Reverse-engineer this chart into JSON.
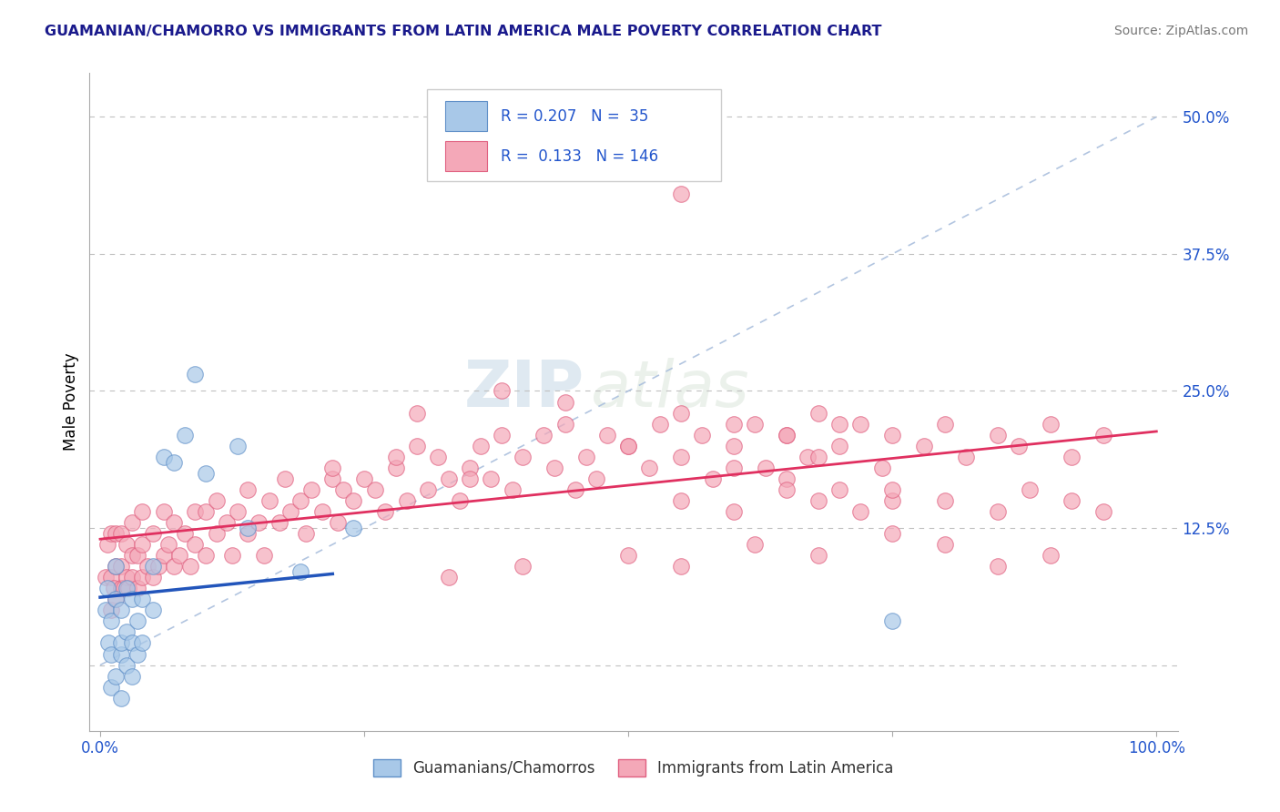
{
  "title": "GUAMANIAN/CHAMORRO VS IMMIGRANTS FROM LATIN AMERICA MALE POVERTY CORRELATION CHART",
  "source": "Source: ZipAtlas.com",
  "ylabel": "Male Poverty",
  "right_yticklabels": [
    "",
    "12.5%",
    "25.0%",
    "37.5%",
    "50.0%"
  ],
  "right_ytick_vals": [
    0.0,
    0.125,
    0.25,
    0.375,
    0.5
  ],
  "color_blue_fill": "#a8c8e8",
  "color_pink_fill": "#f4a8b8",
  "color_blue_edge": "#6090c8",
  "color_pink_edge": "#e06080",
  "color_blue_line": "#2255bb",
  "color_pink_line": "#e03060",
  "color_diag": "#aabfdd",
  "legend_color": "#2255cc",
  "watermark_color": "#c8d8ea",
  "blue_x": [
    0.005,
    0.007,
    0.008,
    0.01,
    0.01,
    0.01,
    0.015,
    0.015,
    0.015,
    0.02,
    0.02,
    0.02,
    0.02,
    0.025,
    0.025,
    0.025,
    0.03,
    0.03,
    0.03,
    0.035,
    0.035,
    0.04,
    0.04,
    0.05,
    0.05,
    0.06,
    0.07,
    0.08,
    0.09,
    0.1,
    0.13,
    0.14,
    0.19,
    0.24,
    0.75
  ],
  "blue_y": [
    0.05,
    0.07,
    0.02,
    -0.02,
    0.01,
    0.04,
    -0.01,
    0.06,
    0.09,
    -0.03,
    0.01,
    0.02,
    0.05,
    0.0,
    0.03,
    0.07,
    -0.01,
    0.02,
    0.06,
    0.01,
    0.04,
    0.02,
    0.06,
    0.05,
    0.09,
    0.19,
    0.185,
    0.21,
    0.265,
    0.175,
    0.2,
    0.125,
    0.085,
    0.125,
    0.04
  ],
  "pink_x": [
    0.005,
    0.007,
    0.01,
    0.01,
    0.01,
    0.013,
    0.015,
    0.015,
    0.015,
    0.02,
    0.02,
    0.02,
    0.022,
    0.025,
    0.025,
    0.027,
    0.03,
    0.03,
    0.03,
    0.035,
    0.035,
    0.04,
    0.04,
    0.04,
    0.045,
    0.05,
    0.05,
    0.055,
    0.06,
    0.06,
    0.065,
    0.07,
    0.07,
    0.075,
    0.08,
    0.085,
    0.09,
    0.09,
    0.1,
    0.1,
    0.11,
    0.11,
    0.12,
    0.125,
    0.13,
    0.14,
    0.14,
    0.15,
    0.155,
    0.16,
    0.17,
    0.175,
    0.18,
    0.19,
    0.195,
    0.2,
    0.21,
    0.22,
    0.225,
    0.23,
    0.24,
    0.25,
    0.26,
    0.27,
    0.28,
    0.29,
    0.3,
    0.31,
    0.32,
    0.33,
    0.34,
    0.35,
    0.36,
    0.37,
    0.38,
    0.39,
    0.4,
    0.42,
    0.43,
    0.44,
    0.45,
    0.46,
    0.47,
    0.48,
    0.5,
    0.52,
    0.53,
    0.55,
    0.57,
    0.58,
    0.6,
    0.62,
    0.63,
    0.65,
    0.67,
    0.68,
    0.7,
    0.72,
    0.74,
    0.75,
    0.78,
    0.8,
    0.82,
    0.85,
    0.87,
    0.9,
    0.92,
    0.95,
    0.55,
    0.3,
    0.38,
    0.44,
    0.5,
    0.55,
    0.6,
    0.65,
    0.68,
    0.7,
    0.33,
    0.4,
    0.5,
    0.55,
    0.62,
    0.68,
    0.75,
    0.8,
    0.85,
    0.9,
    0.6,
    0.65,
    0.7,
    0.75,
    0.55,
    0.6,
    0.65,
    0.68,
    0.72,
    0.75,
    0.8,
    0.85,
    0.88,
    0.92,
    0.95,
    0.22,
    0.28,
    0.35
  ],
  "pink_y": [
    0.08,
    0.11,
    0.05,
    0.08,
    0.12,
    0.07,
    0.06,
    0.09,
    0.12,
    0.07,
    0.09,
    0.12,
    0.07,
    0.08,
    0.11,
    0.07,
    0.08,
    0.1,
    0.13,
    0.07,
    0.1,
    0.08,
    0.11,
    0.14,
    0.09,
    0.08,
    0.12,
    0.09,
    0.1,
    0.14,
    0.11,
    0.09,
    0.13,
    0.1,
    0.12,
    0.09,
    0.11,
    0.14,
    0.1,
    0.14,
    0.12,
    0.15,
    0.13,
    0.1,
    0.14,
    0.12,
    0.16,
    0.13,
    0.1,
    0.15,
    0.13,
    0.17,
    0.14,
    0.15,
    0.12,
    0.16,
    0.14,
    0.17,
    0.13,
    0.16,
    0.15,
    0.17,
    0.16,
    0.14,
    0.18,
    0.15,
    0.2,
    0.16,
    0.19,
    0.17,
    0.15,
    0.18,
    0.2,
    0.17,
    0.21,
    0.16,
    0.19,
    0.21,
    0.18,
    0.22,
    0.16,
    0.19,
    0.17,
    0.21,
    0.2,
    0.18,
    0.22,
    0.19,
    0.21,
    0.17,
    0.2,
    0.22,
    0.18,
    0.21,
    0.19,
    0.23,
    0.2,
    0.22,
    0.18,
    0.21,
    0.2,
    0.22,
    0.19,
    0.21,
    0.2,
    0.22,
    0.19,
    0.21,
    0.43,
    0.23,
    0.25,
    0.24,
    0.2,
    0.23,
    0.22,
    0.21,
    0.19,
    0.22,
    0.08,
    0.09,
    0.1,
    0.09,
    0.11,
    0.1,
    0.12,
    0.11,
    0.09,
    0.1,
    0.18,
    0.17,
    0.16,
    0.15,
    0.15,
    0.14,
    0.16,
    0.15,
    0.14,
    0.16,
    0.15,
    0.14,
    0.16,
    0.15,
    0.14,
    0.18,
    0.19,
    0.17
  ]
}
